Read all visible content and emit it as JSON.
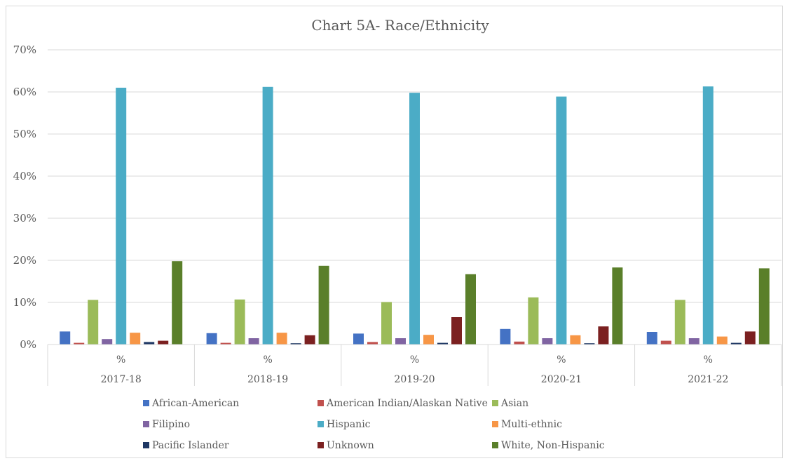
{
  "chart_data": {
    "type": "bar",
    "title": "Chart 5A- Race/Ethnicity",
    "xlabel": "",
    "ylabel": "",
    "ylim": [
      0,
      70
    ],
    "y_ticks": [
      "0%",
      "10%",
      "20%",
      "30%",
      "40%",
      "50%",
      "60%",
      "70%"
    ],
    "categories": [
      "2017-18",
      "2018-19",
      "2019-20",
      "2020-21",
      "2021-22"
    ],
    "sub_category_label": "%",
    "grid": true,
    "legend_position": "bottom",
    "series": [
      {
        "name": "African-American",
        "color": "#4472C4",
        "values": [
          3.1,
          2.7,
          2.6,
          3.7,
          3.0
        ]
      },
      {
        "name": "American Indian/Alaskan Native",
        "color": "#C0504D",
        "values": [
          0.4,
          0.4,
          0.6,
          0.7,
          0.9
        ]
      },
      {
        "name": "Asian",
        "color": "#9BBB59",
        "values": [
          10.6,
          10.7,
          10.1,
          11.2,
          10.6
        ]
      },
      {
        "name": "Filipino",
        "color": "#8064A2",
        "values": [
          1.3,
          1.5,
          1.5,
          1.5,
          1.5
        ]
      },
      {
        "name": "Hispanic",
        "color": "#4BACC6",
        "values": [
          61.0,
          61.2,
          59.8,
          58.9,
          61.3
        ]
      },
      {
        "name": "Multi-ethnic",
        "color": "#F79646",
        "values": [
          2.8,
          2.8,
          2.3,
          2.2,
          1.9
        ]
      },
      {
        "name": "Pacific Islander",
        "color": "#1F3864",
        "values": [
          0.6,
          0.3,
          0.4,
          0.3,
          0.4
        ]
      },
      {
        "name": "Unknown",
        "color": "#7B2020",
        "values": [
          0.9,
          2.2,
          6.5,
          4.3,
          3.1
        ]
      },
      {
        "name": "White, Non-Hispanic",
        "color": "#5A7F2A",
        "values": [
          19.8,
          18.7,
          16.7,
          18.3,
          18.1
        ]
      }
    ]
  }
}
